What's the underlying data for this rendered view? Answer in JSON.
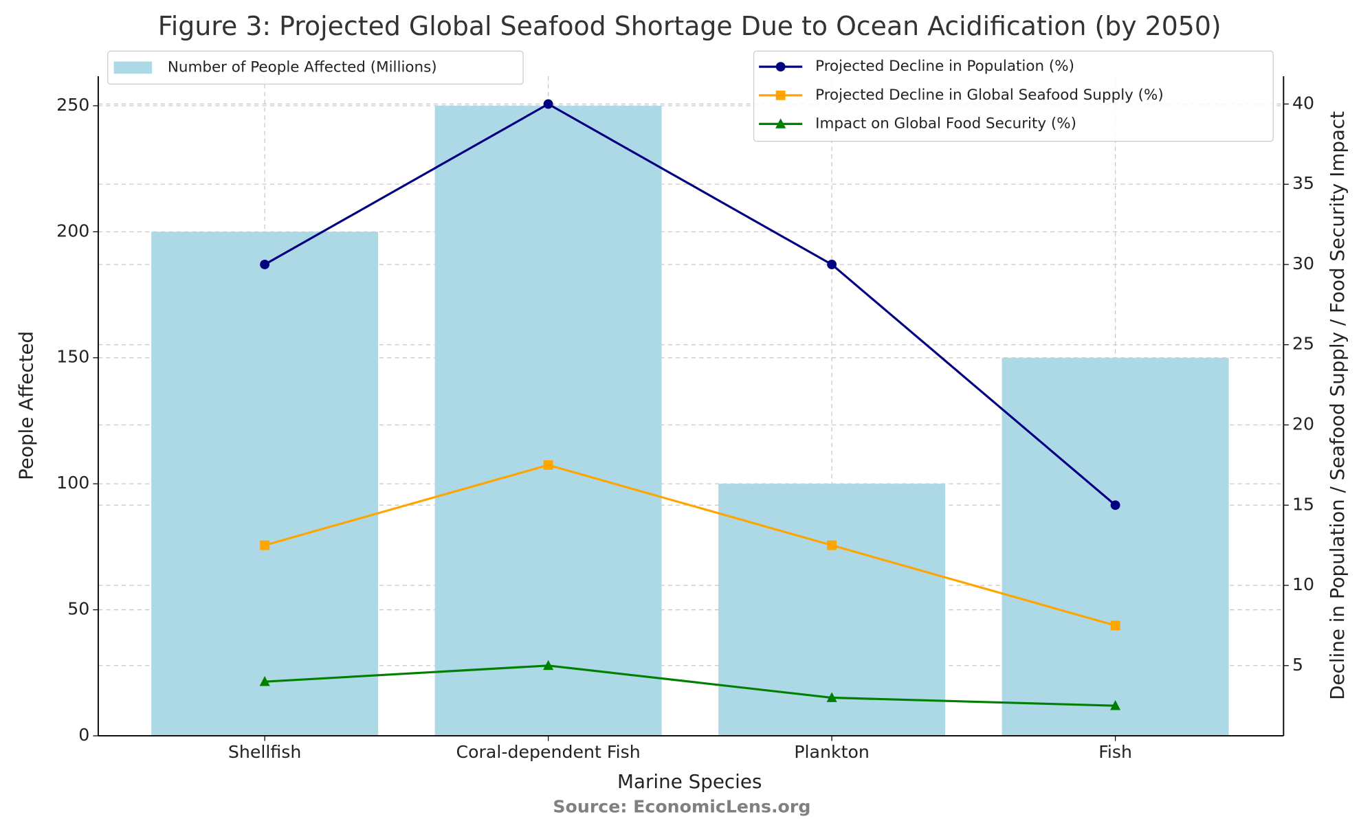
{
  "chart_data": {
    "type": "bar",
    "title": "Figure 3: Projected Global Seafood Shortage Due to Ocean Acidification (by 2050)",
    "xlabel": "Marine Species",
    "ylabel": "People Affected",
    "y2label": "Decline in Population / Seafood Supply / Food Security Impact",
    "source": "Source: EconomicLens.org",
    "categories": [
      "Shellfish",
      "Coral-dependent Fish",
      "Plankton",
      "Fish"
    ],
    "series": [
      {
        "name": "Number of People Affected (Millions)",
        "type": "bar",
        "color": "#add8e6",
        "values": [
          200,
          250,
          100,
          150
        ]
      },
      {
        "name": "Projected Decline in Population (%)",
        "type": "line",
        "marker": "circle",
        "axis": "y2",
        "color": "#000080",
        "values": [
          30,
          40,
          30,
          15
        ]
      },
      {
        "name": "Projected Decline in Global Seafood Supply (%)",
        "type": "line",
        "marker": "square",
        "axis": "y2",
        "color": "#ffa500",
        "values": [
          12.5,
          17.5,
          12.5,
          7.5
        ]
      },
      {
        "name": "Impact on Global Food Security (%)",
        "type": "line",
        "marker": "triangle",
        "axis": "y2",
        "color": "#008000",
        "values": [
          4,
          5,
          3,
          2.5
        ]
      }
    ],
    "ylim": [
      0,
      261.7
    ],
    "yticks": [
      0,
      50,
      100,
      150,
      200,
      250
    ],
    "y2lim": [
      0.625,
      41.73
    ],
    "y2ticks": [
      5,
      10,
      15,
      20,
      25,
      30,
      35,
      40
    ],
    "grid": true
  }
}
